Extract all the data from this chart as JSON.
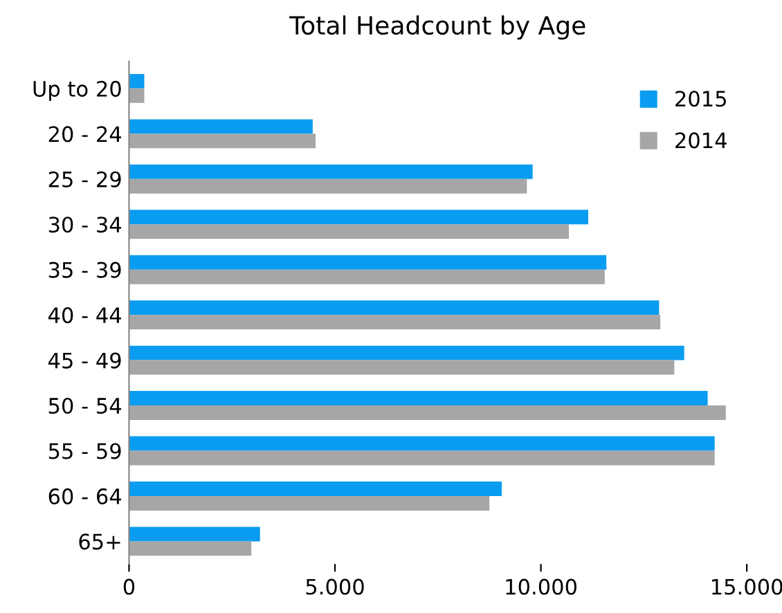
{
  "chart_data": {
    "type": "bar",
    "orientation": "horizontal",
    "title": "Total Headcount by Age",
    "categories": [
      "Up to 20",
      "20 - 24",
      "25 - 29",
      "30 - 34",
      "35 - 39",
      "40 - 44",
      "45 - 49",
      "50 - 54",
      "55 - 59",
      "60 - 64",
      "65+"
    ],
    "series": [
      {
        "name": "2015",
        "color": "#0a9cf0",
        "values": [
          370,
          4460,
          9800,
          11150,
          11590,
          12870,
          13480,
          14050,
          14220,
          9050,
          3180
        ]
      },
      {
        "name": "2014",
        "color": "#a6a6a6",
        "values": [
          370,
          4530,
          9660,
          10680,
          11550,
          12900,
          13240,
          14490,
          14220,
          8750,
          2970
        ]
      }
    ],
    "xlim": [
      0,
      15000
    ],
    "xticks": [
      0,
      {
        "value": 5000,
        "label": "5.000"
      },
      {
        "value": 10000,
        "label": "10.000"
      },
      {
        "value": 15000,
        "label": "15.000"
      }
    ],
    "grid": false,
    "legend": "top right",
    "marker": "square"
  }
}
